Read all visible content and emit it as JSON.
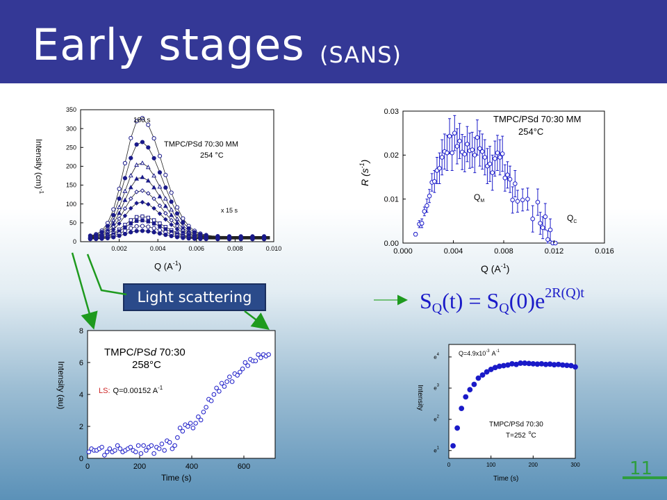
{
  "slide": {
    "title": "Early stages",
    "subtitle": "(SANS)",
    "callout": "Light scattering",
    "page_number": "11"
  },
  "colors": {
    "title_bar": "#343896",
    "marker_blue": "#1a1ac8",
    "accent_green": "#2e9e3e",
    "ls_red": "#cc2222"
  },
  "chart_data": [
    {
      "id": "sans-intensity",
      "type": "line",
      "xlabel": "Q (A",
      "xlabel_sup": "-1",
      "xlabel_end": ")",
      "ylabel": "Intensity (cm)",
      "ylabel_sup": "-1",
      "xlim": [
        0,
        0.01
      ],
      "ylim": [
        0,
        350
      ],
      "xticks": [
        0.002,
        0.004,
        0.006,
        0.008,
        0.01
      ],
      "xtick_labels": [
        "0.002",
        "0.004",
        "0.006",
        "0.008",
        "0.010"
      ],
      "yticks": [
        0,
        50,
        100,
        150,
        200,
        250,
        300,
        350
      ],
      "ytick_labels": [
        "0",
        "50",
        "100",
        "150",
        "200",
        "250",
        "300",
        "350"
      ],
      "annotations": {
        "top_time": "180 s",
        "sample": "TMPC/PSd 70:30 MM",
        "temperature": "254 °C",
        "step": "x 15 s"
      },
      "x": [
        0.0005,
        0.0008,
        0.0011,
        0.0014,
        0.0017,
        0.002,
        0.0023,
        0.0026,
        0.0029,
        0.0032,
        0.0035,
        0.0038,
        0.0041,
        0.0044,
        0.0047,
        0.005,
        0.0053,
        0.0056,
        0.0059,
        0.0062,
        0.0065,
        0.0068,
        0.0071,
        0.0074,
        0.0077,
        0.008,
        0.0083,
        0.0086,
        0.0089,
        0.0092,
        0.0095,
        0.0098
      ],
      "series": [
        {
          "marker": "circle-open",
          "peak": 315
        },
        {
          "marker": "circle-filled",
          "peak": 252
        },
        {
          "marker": "triangle-open",
          "peak": 197
        },
        {
          "marker": "triangle-filled",
          "peak": 160
        },
        {
          "marker": "diamond-open",
          "peak": 125
        },
        {
          "marker": "diamond-filled",
          "peak": 95
        },
        {
          "marker": "square-open",
          "peak": 58
        },
        {
          "marker": "square-filled",
          "peak": 48
        },
        {
          "marker": "circle-open",
          "peak": 34
        },
        {
          "marker": "circle-filled",
          "peak": 22
        }
      ]
    },
    {
      "id": "growth-rate",
      "type": "scatter",
      "xlabel": "Q (A",
      "xlabel_sup": "-1",
      "xlabel_end": ")",
      "ylabel": "R (s",
      "ylabel_sup": "-1",
      "ylabel_end": ")",
      "xlim": [
        0,
        0.016
      ],
      "ylim": [
        0,
        0.03
      ],
      "xticks": [
        0,
        0.004,
        0.008,
        0.012,
        0.016
      ],
      "xtick_labels": [
        "0.000",
        "0.004",
        "0.008",
        "0.012",
        "0.016"
      ],
      "yticks": [
        0,
        0.01,
        0.02,
        0.03
      ],
      "ytick_labels": [
        "0.00",
        "0.01",
        "0.02",
        "0.03"
      ],
      "annotations": {
        "sample": "TMPC/PSd 70:30 MM",
        "temperature": "254°C",
        "qm_main": "Q",
        "qm_sub": "M",
        "qc_main": "Q",
        "qc_sub": "C"
      },
      "points": [
        [
          0.001,
          0.002,
          0.0004
        ],
        [
          0.0013,
          0.0043,
          0.0008
        ],
        [
          0.0015,
          0.0045,
          0.001
        ],
        [
          0.0017,
          0.0072,
          0.001
        ],
        [
          0.0019,
          0.0085,
          0.0015
        ],
        [
          0.0021,
          0.0107,
          0.0015
        ],
        [
          0.0023,
          0.0138,
          0.002
        ],
        [
          0.0025,
          0.014,
          0.0025
        ],
        [
          0.0027,
          0.0165,
          0.003
        ],
        [
          0.0029,
          0.017,
          0.0035
        ],
        [
          0.0031,
          0.0195,
          0.004
        ],
        [
          0.0033,
          0.0208,
          0.004
        ],
        [
          0.0035,
          0.0205,
          0.004
        ],
        [
          0.0037,
          0.0243,
          0.004
        ],
        [
          0.0039,
          0.0205,
          0.004
        ],
        [
          0.0041,
          0.025,
          0.004
        ],
        [
          0.0043,
          0.022,
          0.004
        ],
        [
          0.0045,
          0.0232,
          0.004
        ],
        [
          0.0047,
          0.0207,
          0.004
        ],
        [
          0.0049,
          0.0202,
          0.004
        ],
        [
          0.0051,
          0.0225,
          0.004
        ],
        [
          0.0053,
          0.021,
          0.004
        ],
        [
          0.0055,
          0.0212,
          0.004
        ],
        [
          0.0057,
          0.02,
          0.004
        ],
        [
          0.0059,
          0.024,
          0.004
        ],
        [
          0.0061,
          0.0215,
          0.004
        ],
        [
          0.0063,
          0.0208,
          0.004
        ],
        [
          0.0065,
          0.0195,
          0.004
        ],
        [
          0.0067,
          0.0175,
          0.004
        ],
        [
          0.0069,
          0.018,
          0.004
        ],
        [
          0.0071,
          0.016,
          0.004
        ],
        [
          0.0073,
          0.0192,
          0.004
        ],
        [
          0.0075,
          0.0205,
          0.004
        ],
        [
          0.0077,
          0.0195,
          0.004
        ],
        [
          0.0079,
          0.0203,
          0.004
        ],
        [
          0.0081,
          0.0148,
          0.003
        ],
        [
          0.0083,
          0.0155,
          0.003
        ],
        [
          0.0085,
          0.0145,
          0.003
        ],
        [
          0.0087,
          0.0098,
          0.003
        ],
        [
          0.0089,
          0.0135,
          0.003
        ],
        [
          0.0091,
          0.0095,
          0.0025
        ],
        [
          0.0095,
          0.0098,
          0.0025
        ],
        [
          0.0099,
          0.01,
          0.0025
        ],
        [
          0.0103,
          0.0055,
          0.003
        ],
        [
          0.0107,
          0.0093,
          0.003
        ],
        [
          0.0109,
          0.0045,
          0.0025
        ],
        [
          0.0111,
          0.0035,
          0.0025
        ],
        [
          0.0113,
          0.006,
          0.003
        ],
        [
          0.0115,
          0.0008,
          0.002
        ],
        [
          0.0117,
          0.003,
          0.0025
        ],
        [
          0.0119,
          0.0,
          0.0
        ],
        [
          0.0121,
          0.0,
          0.0
        ]
      ]
    },
    {
      "id": "ls-intensity",
      "type": "scatter",
      "xlabel": "Time (s)",
      "ylabel": "Intensity (au)",
      "xlim": [
        0,
        720
      ],
      "ylim": [
        0,
        8
      ],
      "xticks": [
        0,
        200,
        400,
        600
      ],
      "xtick_labels": [
        "0",
        "200",
        "400",
        "600"
      ],
      "yticks": [
        0,
        2,
        4,
        6,
        8
      ],
      "ytick_labels": [
        "0",
        "2",
        "4",
        "6",
        "8"
      ],
      "annotations": {
        "sample_a": "TMPC/PS",
        "sample_b": "d",
        "sample_c": " 70:30",
        "temperature": "258°C",
        "ls_label": "LS:",
        "q_label": "Q=0.00152 A",
        "q_sup": "-1"
      },
      "points": [
        [
          5,
          0.4
        ],
        [
          15,
          0.6
        ],
        [
          25,
          0.5
        ],
        [
          35,
          0.5
        ],
        [
          45,
          0.6
        ],
        [
          55,
          0.7
        ],
        [
          65,
          0.2
        ],
        [
          75,
          0.4
        ],
        [
          85,
          0.6
        ],
        [
          95,
          0.4
        ],
        [
          105,
          0.5
        ],
        [
          115,
          0.8
        ],
        [
          125,
          0.6
        ],
        [
          135,
          0.4
        ],
        [
          145,
          0.5
        ],
        [
          155,
          0.6
        ],
        [
          165,
          0.7
        ],
        [
          175,
          0.5
        ],
        [
          185,
          0.4
        ],
        [
          195,
          0.8
        ],
        [
          205,
          0.3
        ],
        [
          215,
          0.8
        ],
        [
          225,
          0.5
        ],
        [
          235,
          0.7
        ],
        [
          245,
          0.8
        ],
        [
          255,
          0.3
        ],
        [
          265,
          0.7
        ],
        [
          275,
          0.6
        ],
        [
          285,
          0.9
        ],
        [
          295,
          0.5
        ],
        [
          305,
          1.1
        ],
        [
          315,
          1.0
        ],
        [
          325,
          0.6
        ],
        [
          335,
          0.8
        ],
        [
          345,
          1.3
        ],
        [
          355,
          1.9
        ],
        [
          365,
          1.7
        ],
        [
          375,
          2.1
        ],
        [
          385,
          2.0
        ],
        [
          395,
          2.2
        ],
        [
          405,
          1.9
        ],
        [
          415,
          2.2
        ],
        [
          425,
          2.6
        ],
        [
          435,
          2.4
        ],
        [
          445,
          2.9
        ],
        [
          455,
          3.2
        ],
        [
          465,
          3.7
        ],
        [
          475,
          3.6
        ],
        [
          485,
          4.0
        ],
        [
          495,
          4.4
        ],
        [
          505,
          4.2
        ],
        [
          515,
          4.7
        ],
        [
          525,
          4.5
        ],
        [
          535,
          4.8
        ],
        [
          545,
          5.1
        ],
        [
          555,
          4.8
        ],
        [
          565,
          5.3
        ],
        [
          575,
          5.2
        ],
        [
          585,
          5.4
        ],
        [
          595,
          5.6
        ],
        [
          605,
          6.0
        ],
        [
          615,
          5.8
        ],
        [
          625,
          6.2
        ],
        [
          635,
          6.1
        ],
        [
          645,
          6.1
        ],
        [
          655,
          6.5
        ],
        [
          665,
          6.3
        ],
        [
          675,
          6.5
        ],
        [
          685,
          6.4
        ],
        [
          695,
          6.5
        ]
      ]
    },
    {
      "id": "ls-log-intensity",
      "type": "scatter",
      "xlabel": "Time (s)",
      "ylabel": "Intensity",
      "xlim": [
        0,
        300
      ],
      "ylim": [
        0.75,
        4.4
      ],
      "xticks": [
        0,
        100,
        200,
        300
      ],
      "xtick_labels": [
        "0",
        "100",
        "200",
        "300"
      ],
      "yticks": [
        1,
        2,
        3,
        4
      ],
      "ytick_labels": [
        "e",
        "e",
        "e",
        "e"
      ],
      "ytick_sups": [
        "1",
        "2",
        "3",
        "4"
      ],
      "annotations": {
        "q_label": "Q=4.9x10",
        "q_sup1": "-3",
        "q_unit": "A",
        "q_sup2": "-1",
        "sample": "TMPC/PSd 70:30",
        "temperature": "T=252",
        "temp_sup": "o",
        "temp_unit": "C"
      },
      "points": [
        [
          10,
          1.15
        ],
        [
          20,
          1.72
        ],
        [
          30,
          2.35
        ],
        [
          40,
          2.72
        ],
        [
          50,
          2.95
        ],
        [
          60,
          3.12
        ],
        [
          70,
          3.32
        ],
        [
          80,
          3.42
        ],
        [
          90,
          3.52
        ],
        [
          100,
          3.6
        ],
        [
          110,
          3.66
        ],
        [
          120,
          3.7
        ],
        [
          130,
          3.72
        ],
        [
          140,
          3.74
        ],
        [
          150,
          3.78
        ],
        [
          160,
          3.76
        ],
        [
          170,
          3.8
        ],
        [
          180,
          3.8
        ],
        [
          190,
          3.79
        ],
        [
          200,
          3.78
        ],
        [
          210,
          3.77
        ],
        [
          220,
          3.78
        ],
        [
          230,
          3.76
        ],
        [
          240,
          3.77
        ],
        [
          250,
          3.75
        ],
        [
          260,
          3.76
        ],
        [
          270,
          3.74
        ],
        [
          280,
          3.73
        ],
        [
          290,
          3.72
        ],
        [
          300,
          3.68
        ]
      ]
    }
  ],
  "equation": {
    "lhs": "S",
    "lhs_sub": "Q",
    "lhs_arg": "(t) = S",
    "rhs_sub": "Q",
    "rhs_arg": "(0)e",
    "exp": "2R(Q)t"
  }
}
